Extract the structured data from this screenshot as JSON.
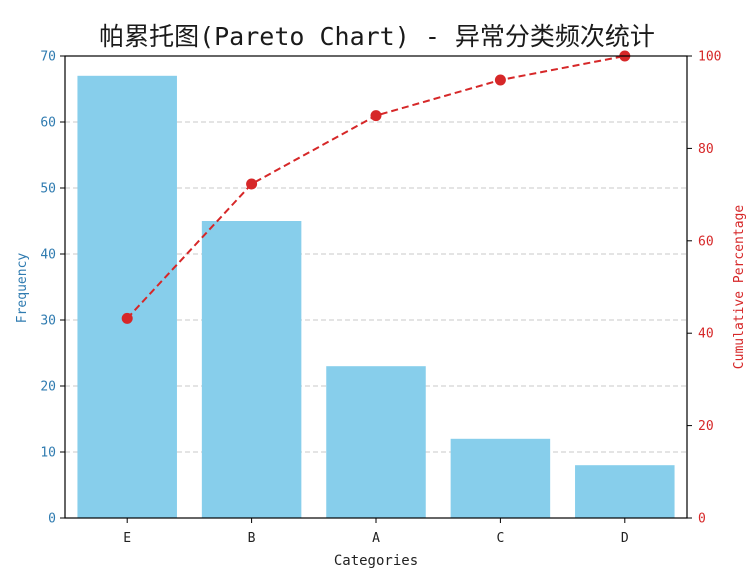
{
  "chart_data": {
    "type": "bar",
    "title": "帕累托图(Pareto Chart) - 异常分类频次统计",
    "xlabel": "Categories",
    "ylabel": "Frequency",
    "y2label": "Cumulative Percentage",
    "categories": [
      "E",
      "B",
      "A",
      "C",
      "D"
    ],
    "values": [
      67,
      45,
      23,
      12,
      8
    ],
    "ylim": [
      0,
      70
    ],
    "y2lim": [
      0,
      100
    ],
    "yticks": [
      0,
      10,
      20,
      30,
      40,
      50,
      60,
      70
    ],
    "y2ticks": [
      0,
      20,
      40,
      60,
      80,
      100
    ],
    "cumulative_percentage": [
      43.2,
      72.3,
      87.1,
      94.8,
      100.0
    ],
    "grid": true,
    "colors": {
      "bars": "#87ceeb",
      "line": "#d62728",
      "left_axis": "#2f7bb0",
      "right_axis": "#d62728"
    }
  }
}
